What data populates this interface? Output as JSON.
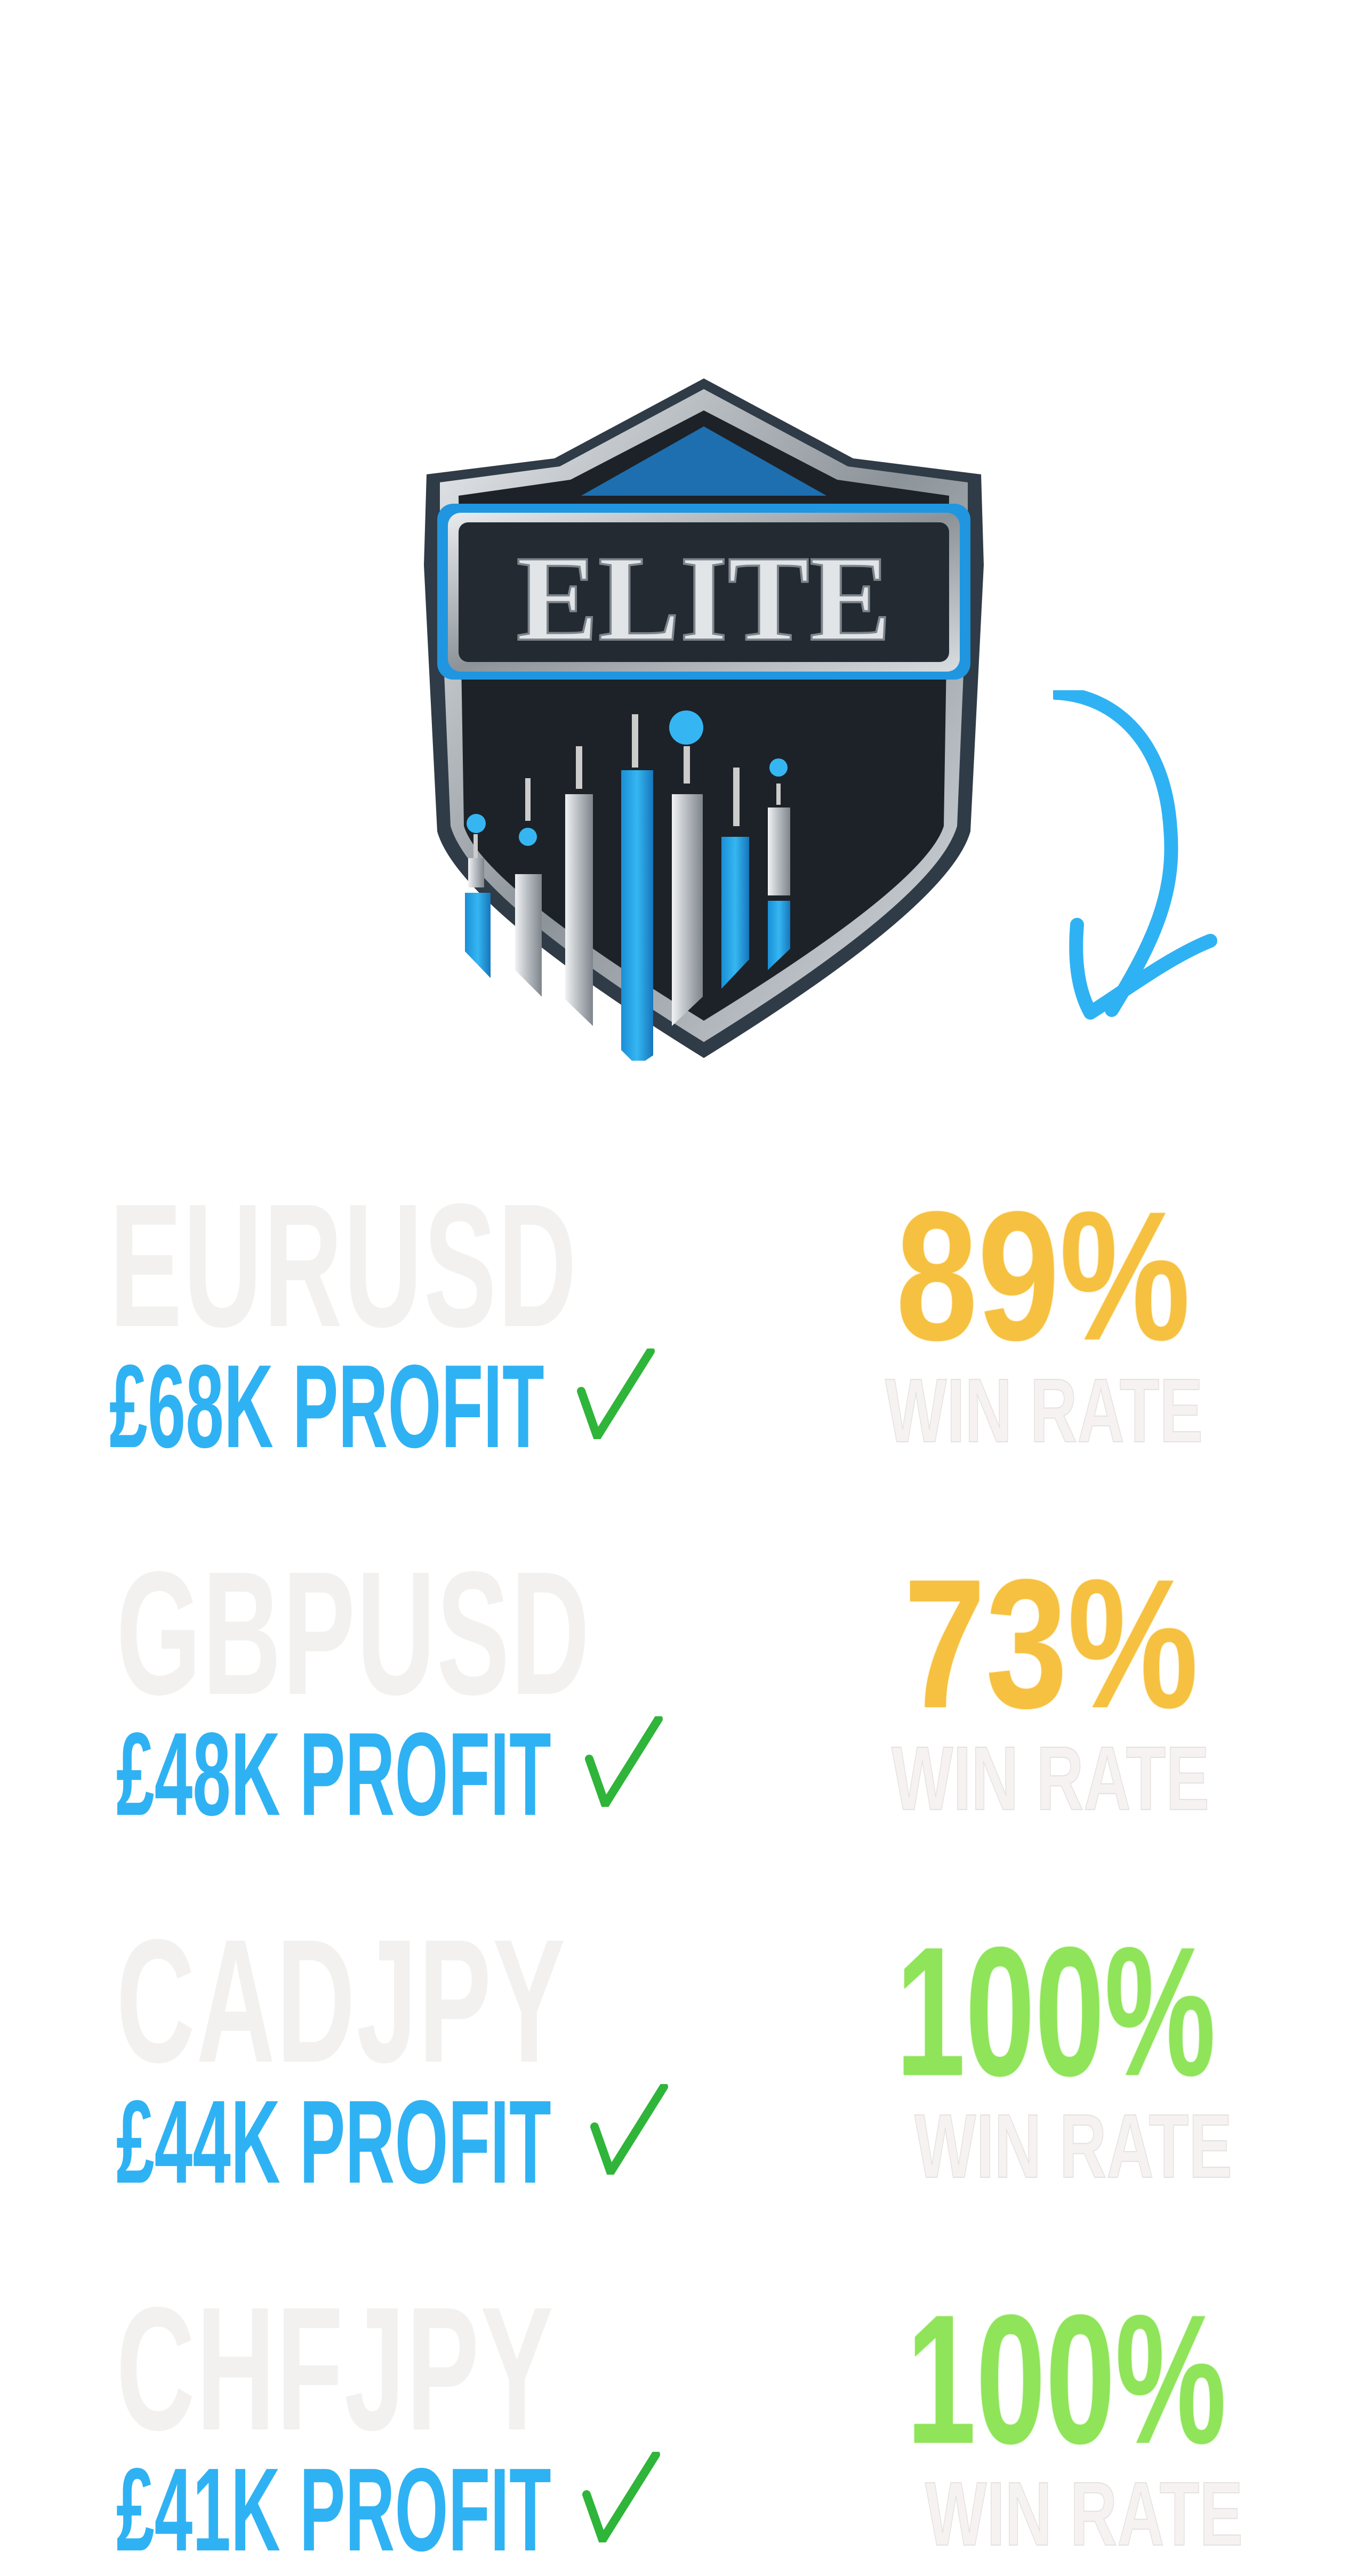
{
  "logo": {
    "text": "ELITE",
    "icon": "shield-candlestick-logo"
  },
  "arrow": {
    "icon": "hand-drawn-arrow-down",
    "color": "#2fb2f3"
  },
  "colors": {
    "profit": "#2fb2f3",
    "check": "#2fb53a",
    "pair": "#f2f1ef",
    "gold": "#f6c141",
    "green": "#8fe45a"
  },
  "rows": [
    {
      "pair": "EURUSD",
      "profit": "£68K PROFIT",
      "win_rate": "89%",
      "win_label": "WIN RATE",
      "tone": "gold"
    },
    {
      "pair": "GBPUSD",
      "profit": "£48K PROFIT",
      "win_rate": "73%",
      "win_label": "WIN RATE",
      "tone": "gold"
    },
    {
      "pair": "CADJPY",
      "profit": "£44K PROFIT",
      "win_rate": "100%",
      "win_label": "WIN RATE",
      "tone": "green"
    },
    {
      "pair": "CHFJPY",
      "profit": "£41K PROFIT",
      "win_rate": "100%",
      "win_label": "WIN RATE",
      "tone": "green"
    }
  ]
}
